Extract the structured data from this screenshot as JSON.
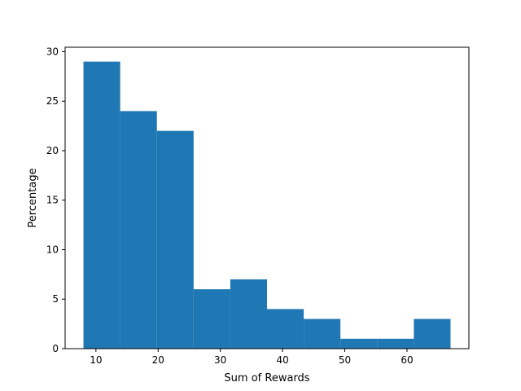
{
  "chart_data": {
    "type": "bar",
    "subtype": "histogram",
    "xlabel": "Sum of Rewards",
    "ylabel": "Percentage",
    "bin_edges": [
      8,
      13.9,
      19.8,
      25.7,
      31.6,
      37.5,
      43.4,
      49.3,
      55.2,
      61.1,
      67
    ],
    "values": [
      29,
      24,
      22,
      6,
      7,
      4,
      3,
      1,
      1,
      3
    ],
    "xlim": [
      5.05,
      69.95
    ],
    "ylim": [
      0,
      30.45
    ],
    "xticks": [
      10,
      20,
      30,
      40,
      50,
      60
    ],
    "yticks": [
      0,
      5,
      10,
      15,
      20,
      25,
      30
    ],
    "bar_color": "#1f77b4",
    "grid": false,
    "legend": "none"
  }
}
